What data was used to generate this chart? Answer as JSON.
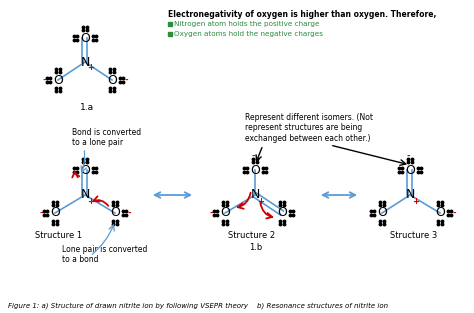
{
  "bg_color": "#ffffff",
  "title_text": "Electronegativity of oxygen is higher than oxygen. Therefore,",
  "bullet1": "Nitrogen atom holds the positive charge",
  "bullet2": "Oxygen atoms hold the negative charges",
  "caption": "Figure 1: a) Structure of drawn nitrite ion by following VSEPR theory    b) Resonance structures of nitrite ion",
  "note_isomers": "Represent different isomers. (Not\nrepresent structures are being\nexchanged between each other.)",
  "note_bond_lone": "Bond is converted\nto a lone pair",
  "note_lone_bond": "Lone pair is converted\nto a bond",
  "struct1_label": "Structure 1",
  "struct2_label": "Structure 2",
  "struct2b_label": "1.b",
  "struct3_label": "Structure 3",
  "label_1a": "1.a",
  "bond_color": "#5b9bd5",
  "arrow_color": "#5b9bd5",
  "red_color": "#cc0000",
  "green_color": "#2e8b40",
  "black": "#000000"
}
